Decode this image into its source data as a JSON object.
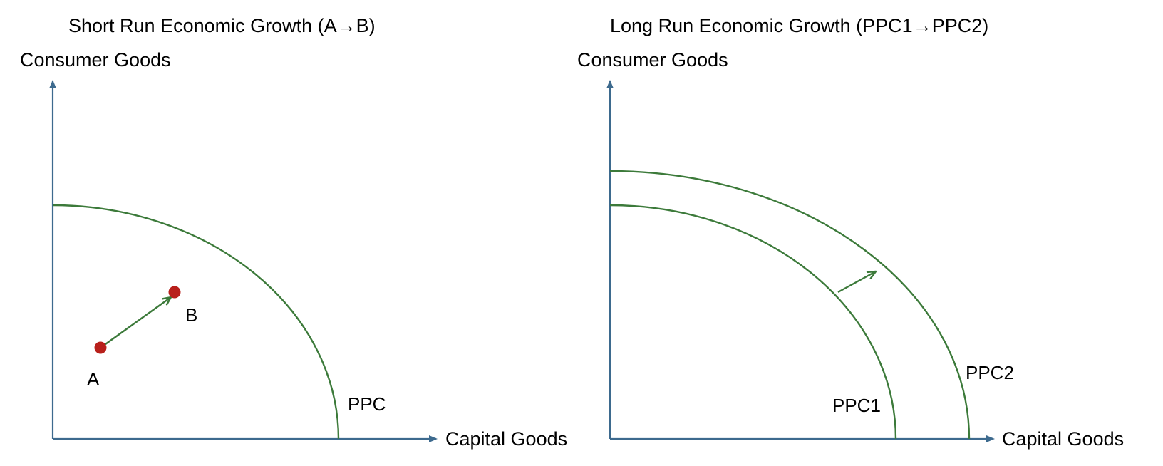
{
  "colors": {
    "axis": "#3d6a8e",
    "curve": "#3c7a3a",
    "arrow": "#3c7a3a",
    "point": "#b8201b",
    "text": "#000000"
  },
  "left_panel": {
    "title": "Short Run Economic Growth (A→B)",
    "y_axis_label": "Consumer Goods",
    "x_axis_label": "Capital Goods",
    "curve_label": "PPC",
    "point_a_label": "A",
    "point_b_label": "B"
  },
  "right_panel": {
    "title": "Long Run Economic Growth (PPC1→PPC2)",
    "y_axis_label": "Consumer Goods",
    "x_axis_label": "Capital Goods",
    "curve1_label": "PPC1",
    "curve2_label": "PPC2"
  }
}
